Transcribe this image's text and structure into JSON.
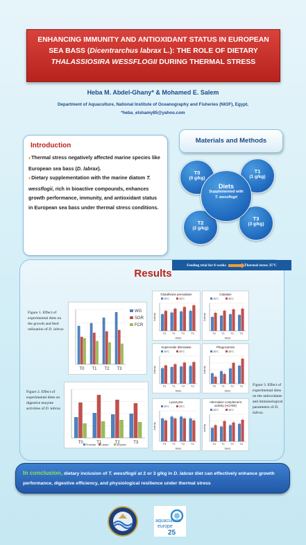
{
  "title": {
    "line1": "ENHANCING IMMUNITY AND ANTIOXIDANT STATUS IN EUROPEAN",
    "line2_pre": "SEA BASS (",
    "line2_species": "Dicentrarchus labrax",
    "line2_post": " L.): THE ROLE OF DIETARY",
    "line3_species": "THALASSIOSIRA WESSFLOGII",
    "line3_post": " DURING THERMAL STRESS"
  },
  "authors": "Heba M. Abdel-Ghany* & Mohamed E. Salem",
  "affiliation": "Department of Aquaculture, National Institute of Oceanography and Fisheries (NIOF), Egypt,",
  "email": "*heba_elshamy85@yahoo.com",
  "introduction": {
    "heading": "Introduction",
    "bullet1_pre": "Thermal stress negatively affected marine species like European sea bass (",
    "bullet1_species": "D. labrax",
    "bullet1_post": ").",
    "bullet2_pre": "Dietary supplementation with the marine diatom ",
    "bullet2_species": "T. wessflogii",
    "bullet2_post": ", rich in bioactive compounds, enhances growth performance, immunity, and antioxidant status in European sea bass under thermal stress conditions."
  },
  "methods": {
    "heading": "Materials and Methods",
    "center": {
      "title": "Diets",
      "line1": "Supplemented with",
      "line2": "T. wessflogii"
    },
    "diets": [
      {
        "name": "T0",
        "dose": "(0 g/kg)"
      },
      {
        "name": "T1",
        "dose": "(1 g/kg)"
      },
      {
        "name": "T2",
        "dose": "(2 g/kg)"
      },
      {
        "name": "T3",
        "dose": "(3 g/kg)"
      }
    ],
    "trial_left": "Feeding trial for 8 weeks",
    "trial_right": "Thermal stress 35°C"
  },
  "results": {
    "heading": "Results",
    "fig1": {
      "pre": "Figure 1. Effect of experimental diets on the growth and feed utilization of ",
      "species": "D. labrax"
    },
    "fig2": {
      "pre": "Figure 2. Effect of experimental diets on digestive enzyme activities of ",
      "species": "D. labrax"
    },
    "fig3": {
      "pre": "Figure 3. Effect of experimental diets on the antioxidants and immunological parameters of ",
      "species": "D. labrax",
      "post": "."
    }
  },
  "chart_data": [
    {
      "type": "bar",
      "categories": [
        "T0",
        "T1",
        "T2",
        "T3"
      ],
      "series": [
        {
          "name": "WG",
          "values": [
            2.8,
            3.0,
            3.4,
            3.8
          ],
          "color": "#4f81bd"
        },
        {
          "name": "SGR",
          "values": [
            2.0,
            2.3,
            2.4,
            2.5
          ],
          "color": "#c0504d"
        },
        {
          "name": "FCR",
          "values": [
            1.9,
            1.7,
            1.6,
            1.5
          ],
          "color": "#9bbb59"
        }
      ],
      "ylim": [
        0,
        4
      ]
    },
    {
      "type": "bar",
      "categories": [
        "T0",
        "T1",
        "T2",
        "T3"
      ],
      "series": [
        {
          "name": "Protease",
          "values": [
            3.0,
            3.6,
            3.4,
            3.5
          ],
          "color": "#4f81bd"
        },
        {
          "name": "Lipase",
          "values": [
            5.1,
            6.2,
            5.5,
            5.0
          ],
          "color": "#c0504d"
        },
        {
          "name": "Amylase",
          "values": [
            2.1,
            2.4,
            2.6,
            2.3
          ],
          "color": "#9bbb59"
        }
      ],
      "ylim": [
        0,
        7
      ]
    },
    {
      "type": "bar",
      "title": "Glutathione peroxidase",
      "xlabel": "Diets",
      "ylabel": "Activity",
      "categories": [
        "T0",
        "T1",
        "T2",
        "T3"
      ],
      "series": [
        {
          "name": "25°C",
          "values": [
            3.0,
            3.3,
            3.5,
            3.6
          ],
          "color": "#4f81bd"
        },
        {
          "name": "35°C",
          "values": [
            3.6,
            4.0,
            4.3,
            4.6
          ],
          "color": "#c0504d"
        }
      ],
      "ylim": [
        0,
        5
      ]
    },
    {
      "type": "bar",
      "title": "Catalase",
      "xlabel": "Diets",
      "ylabel": "Activity",
      "categories": [
        "T0",
        "T1",
        "T2",
        "T3"
      ],
      "series": [
        {
          "name": "25°C",
          "values": [
            2.0,
            2.2,
            2.4,
            2.3
          ],
          "color": "#4f81bd"
        },
        {
          "name": "35°C",
          "values": [
            2.6,
            2.9,
            3.1,
            3.2
          ],
          "color": "#c0504d"
        }
      ],
      "ylim": [
        0,
        4
      ]
    },
    {
      "type": "bar",
      "title": "Superoxide dismutase",
      "xlabel": "Diets",
      "ylabel": "Activity",
      "categories": [
        "T0",
        "T1",
        "T2",
        "T3"
      ],
      "series": [
        {
          "name": "25°C",
          "values": [
            2.8,
            3.0,
            3.1,
            3.2
          ],
          "color": "#4f81bd"
        },
        {
          "name": "35°C",
          "values": [
            3.3,
            3.5,
            3.8,
            3.9
          ],
          "color": "#c0504d"
        }
      ],
      "ylim": [
        0,
        5
      ]
    },
    {
      "type": "bar",
      "title": "Phagocytosis",
      "xlabel": "Diets",
      "ylabel": "Activity",
      "categories": [
        "T0",
        "T1",
        "T2",
        "T3"
      ],
      "series": [
        {
          "name": "25°C",
          "values": [
            1.5,
            1.8,
            2.2,
            2.6
          ],
          "color": "#4f81bd"
        },
        {
          "name": "35°C",
          "values": [
            1.0,
            1.4,
            3.0,
            3.6
          ],
          "color": "#c0504d"
        }
      ],
      "ylim": [
        0,
        4
      ]
    },
    {
      "type": "bar",
      "title": "Lysozyme",
      "xlabel": "Diets",
      "ylabel": "Activity",
      "categories": [
        "T0",
        "T1",
        "T2",
        "T3"
      ],
      "series": [
        {
          "name": "25°C",
          "values": [
            1.2,
            1.3,
            1.3,
            1.2
          ],
          "color": "#4f81bd"
        },
        {
          "name": "35°C",
          "values": [
            1.1,
            1.2,
            1.2,
            1.1
          ],
          "color": "#c0504d"
        }
      ],
      "ylim": [
        0,
        1.6
      ]
    },
    {
      "type": "bar",
      "title": "Alternative complement activity (ACH50)",
      "xlabel": "Diets",
      "ylabel": "Activity",
      "categories": [
        "T0",
        "T1",
        "T2",
        "T3"
      ],
      "series": [
        {
          "name": "25°C",
          "values": [
            0.5,
            0.55,
            0.6,
            0.65
          ],
          "color": "#4f81bd"
        },
        {
          "name": "35°C",
          "values": [
            0.6,
            0.75,
            0.7,
            0.8
          ],
          "color": "#c0504d"
        }
      ],
      "ylim": [
        0,
        1
      ]
    }
  ],
  "conclusion": {
    "lead": "In conclusion,",
    "text1": " dietary inclusion of ",
    "species1": "T. wessflogii",
    "text2": " at 2 or 3 g/kg in ",
    "species2": "D. labrax",
    "text3": " diet can effectively enhance growth performance, digestive efficiency, and physiological resilience under thermal stress"
  },
  "logos": {
    "ae_line1": "aquaculture",
    "ae_line2": "europe",
    "ae_number": "25"
  }
}
